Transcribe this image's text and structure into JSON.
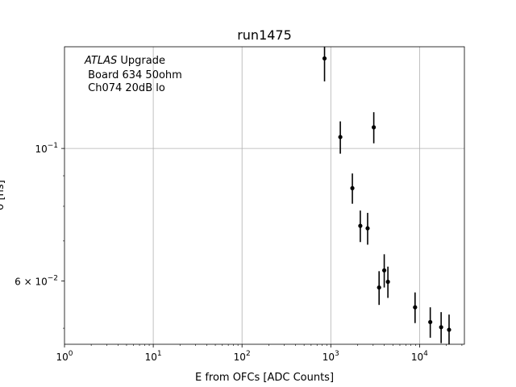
{
  "chart_data": {
    "type": "scatter",
    "title": "run1475",
    "xlabel": "E from OFCs [ADC Counts]",
    "ylabel": "σ [ns]",
    "x_scale": "log",
    "y_scale": "log",
    "xlim": [
      1,
      32000
    ],
    "ylim": [
      0.047,
      0.148
    ],
    "grid": true,
    "x_ticks": [
      {
        "value": 1,
        "base": "10",
        "exp": "0"
      },
      {
        "value": 10,
        "base": "10",
        "exp": "1"
      },
      {
        "value": 100,
        "base": "10",
        "exp": "2"
      },
      {
        "value": 1000,
        "base": "10",
        "exp": "3"
      },
      {
        "value": 10000,
        "base": "10",
        "exp": "4"
      }
    ],
    "y_ticks": [
      {
        "value": 0.1,
        "base": "10",
        "exp": "−1",
        "prefix": ""
      },
      {
        "value": 0.06,
        "base": "10",
        "exp": "−2",
        "prefix": "6 × "
      }
    ],
    "annotation": {
      "italic": "ATLAS",
      "rest": " Upgrade",
      "line2": " Board 634 50ohm",
      "line3": " Ch074 20dB lo"
    },
    "marker_color": "#000000",
    "points": [
      {
        "x": 850,
        "y": 0.1415,
        "err": 0.012
      },
      {
        "x": 1280,
        "y": 0.1045,
        "err": 0.0065
      },
      {
        "x": 3050,
        "y": 0.1085,
        "err": 0.0065
      },
      {
        "x": 1750,
        "y": 0.0858,
        "err": 0.005
      },
      {
        "x": 2150,
        "y": 0.0742,
        "err": 0.0045
      },
      {
        "x": 2600,
        "y": 0.0735,
        "err": 0.0045
      },
      {
        "x": 4000,
        "y": 0.0625,
        "err": 0.004
      },
      {
        "x": 3500,
        "y": 0.0585,
        "err": 0.0038
      },
      {
        "x": 4400,
        "y": 0.0598,
        "err": 0.0036
      },
      {
        "x": 8900,
        "y": 0.0542,
        "err": 0.0032
      },
      {
        "x": 13200,
        "y": 0.0512,
        "err": 0.003
      },
      {
        "x": 17500,
        "y": 0.0502,
        "err": 0.003
      },
      {
        "x": 21500,
        "y": 0.0497,
        "err": 0.003
      }
    ]
  }
}
